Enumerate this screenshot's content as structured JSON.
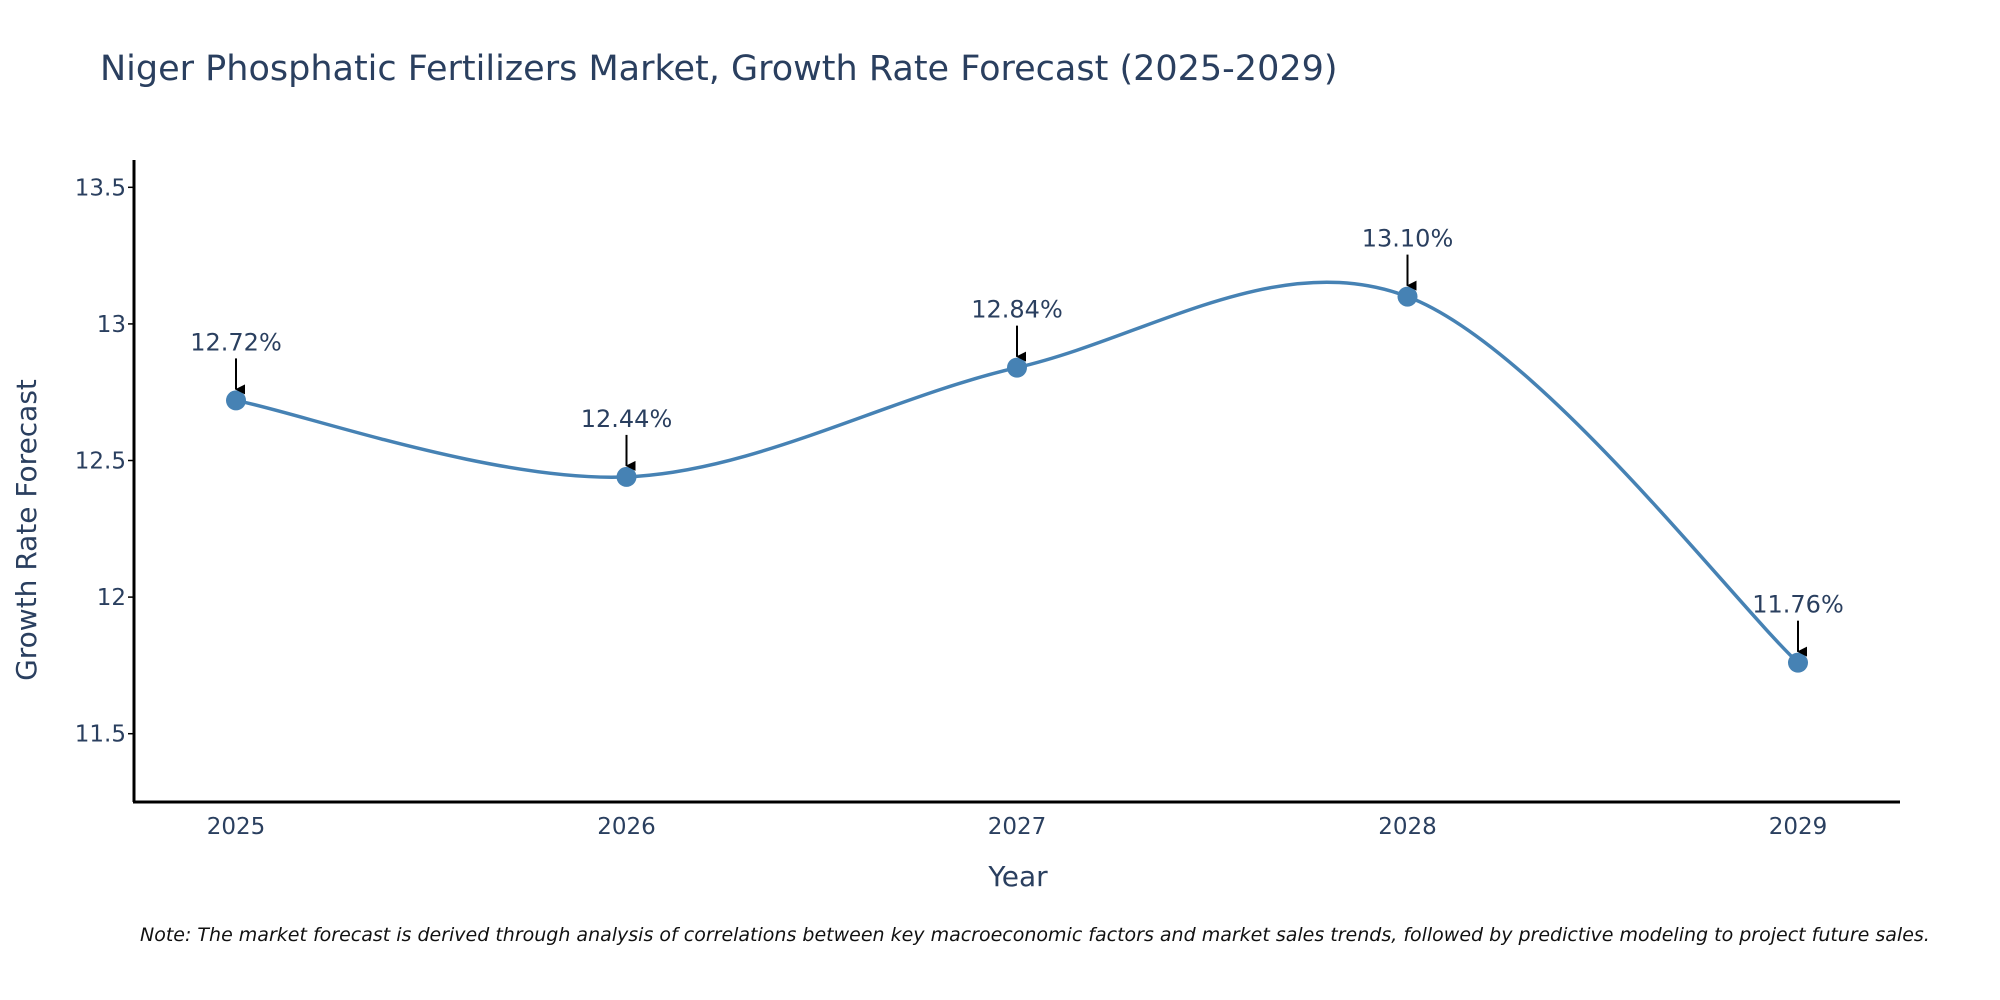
{
  "chart_data": {
    "type": "line",
    "title": "Niger Phosphatic Fertilizers Market, Growth Rate Forecast (2025-2029)",
    "xlabel": "Year",
    "ylabel": "Growth Rate Forecast",
    "categories": [
      "2025",
      "2026",
      "2027",
      "2028",
      "2029"
    ],
    "values": [
      12.72,
      12.44,
      12.84,
      13.1,
      11.76
    ],
    "data_labels": [
      "12.72%",
      "12.44%",
      "12.84%",
      "13.10%",
      "11.76%"
    ],
    "ylim": [
      11.25,
      13.6
    ],
    "yticks": [
      11.5,
      12,
      12.5,
      13,
      13.5
    ],
    "ytick_labels": [
      "11.5",
      "12",
      "12.5",
      "13",
      "13.5"
    ],
    "grid": false,
    "line_shape": "spline",
    "line_color": "#4682b4",
    "marker_color": "#4682b4",
    "arrow_color": "#000000",
    "note": "Note: The market forecast is derived through analysis of correlations between key macroeconomic factors and market sales trends, followed by predictive modeling to project future sales."
  }
}
